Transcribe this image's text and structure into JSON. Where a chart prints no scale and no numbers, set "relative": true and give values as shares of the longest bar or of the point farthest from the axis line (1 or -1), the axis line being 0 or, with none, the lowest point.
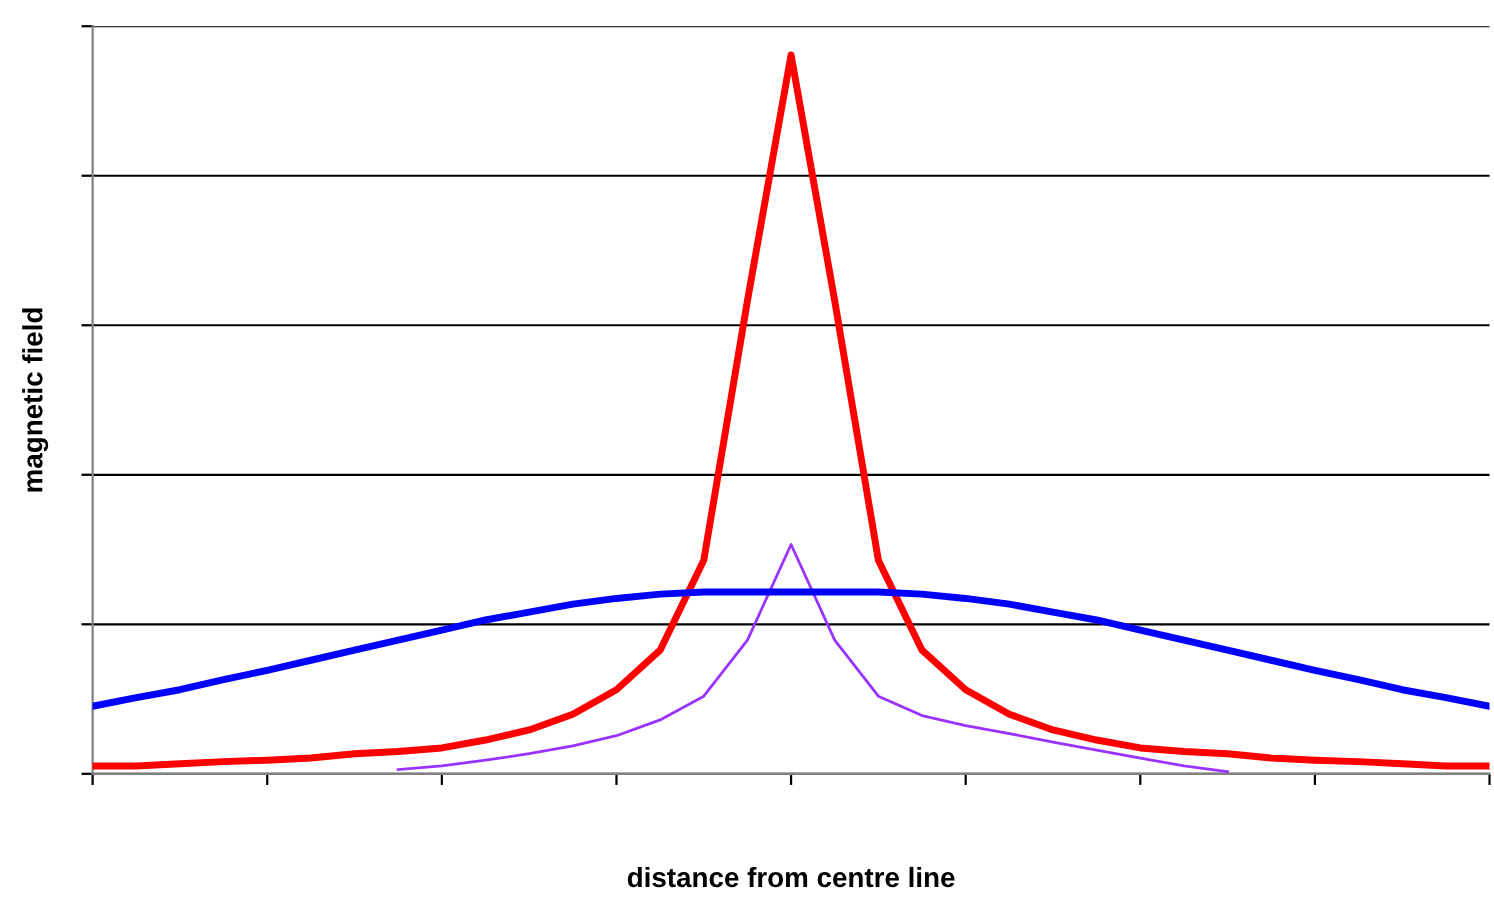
{
  "chart_data": {
    "type": "line",
    "relative": true,
    "xlabel": "distance from centre line",
    "ylabel": "magnetic field",
    "grid": "y",
    "legend": false,
    "marker": "none",
    "line_style": "solid",
    "categories": [
      null,
      null,
      null,
      null,
      null,
      null,
      null,
      null,
      null,
      null,
      null,
      null,
      null,
      null,
      null,
      null,
      null,
      null,
      null,
      null,
      null,
      null,
      null,
      null,
      null,
      null,
      null,
      null,
      null,
      null,
      null,
      null,
      null
    ],
    "series": [
      {
        "color": "#0000ff",
        "values": [
          0.094,
          0.106,
          0.117,
          0.131,
          0.144,
          0.158,
          0.172,
          0.186,
          0.2,
          0.214,
          0.225,
          0.236,
          0.244,
          0.25,
          0.253,
          0.253,
          0.253,
          0.253,
          0.253,
          0.25,
          0.244,
          0.236,
          0.225,
          0.214,
          0.2,
          0.186,
          0.172,
          0.158,
          0.144,
          0.131,
          0.117,
          0.106,
          0.094
        ]
      },
      {
        "color": "#ff0000",
        "values": [
          0.011,
          0.011,
          0.014,
          0.017,
          0.019,
          0.022,
          0.028,
          0.031,
          0.036,
          0.047,
          0.061,
          0.083,
          0.117,
          0.172,
          0.297,
          0.658,
          1,
          0.658,
          0.297,
          0.172,
          0.117,
          0.083,
          0.061,
          0.047,
          0.036,
          0.031,
          0.028,
          0.022,
          0.019,
          0.017,
          0.014,
          0.011,
          0.011
        ]
      },
      {
        "color": "#9933ff",
        "values": [
          null,
          null,
          null,
          null,
          null,
          null,
          null,
          0.006,
          0.011,
          0.019,
          0.028,
          0.039,
          0.053,
          0.075,
          0.108,
          0.186,
          0.319,
          0.186,
          0.108,
          0.081,
          0.067,
          0.056,
          0.044,
          0.033,
          0.022,
          0.011,
          0.003,
          null,
          null,
          null,
          null,
          null,
          null
        ]
      }
    ]
  }
}
